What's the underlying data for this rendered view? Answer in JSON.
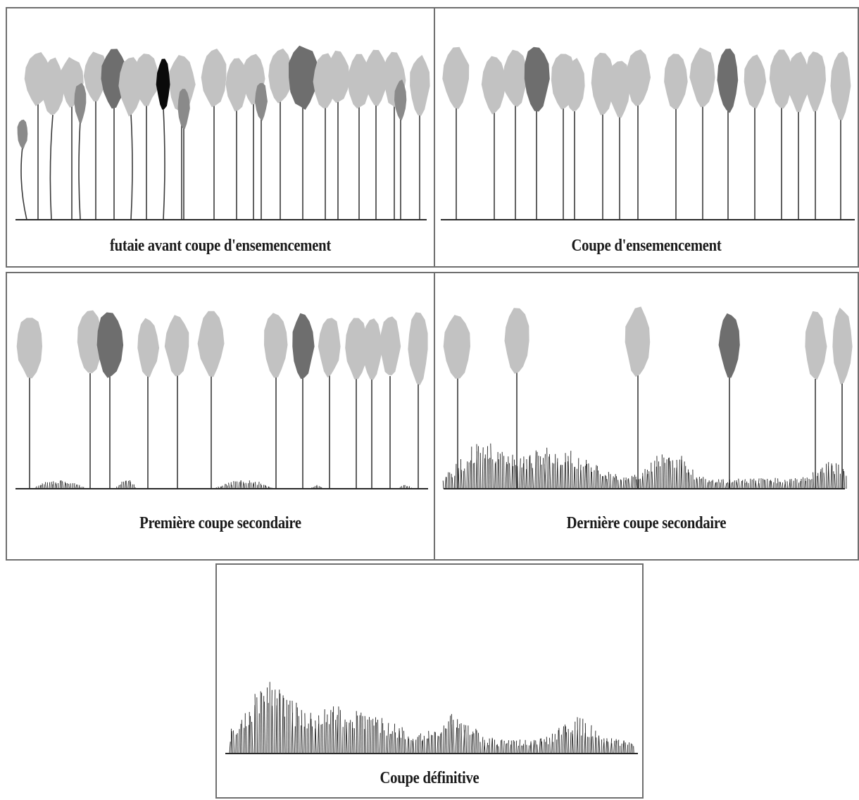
{
  "colors": {
    "crown_light": "#c2c2c2",
    "crown_mid": "#8a8a8a",
    "crown_dark": "#6e6e6e",
    "crown_black": "#0a0a0a",
    "trunk": "#3a3a3a",
    "ground": "#2a2a2a",
    "regeneration": "#1e1e1e"
  },
  "panels": [
    {
      "caption": "futaie avant coupe d'ensemencement"
    },
    {
      "caption": "Coupe d'ensemencement"
    },
    {
      "caption": "Première coupe secondaire"
    },
    {
      "caption": "Dernière coupe secondaire"
    },
    {
      "caption": "Coupe définitive"
    }
  ]
}
